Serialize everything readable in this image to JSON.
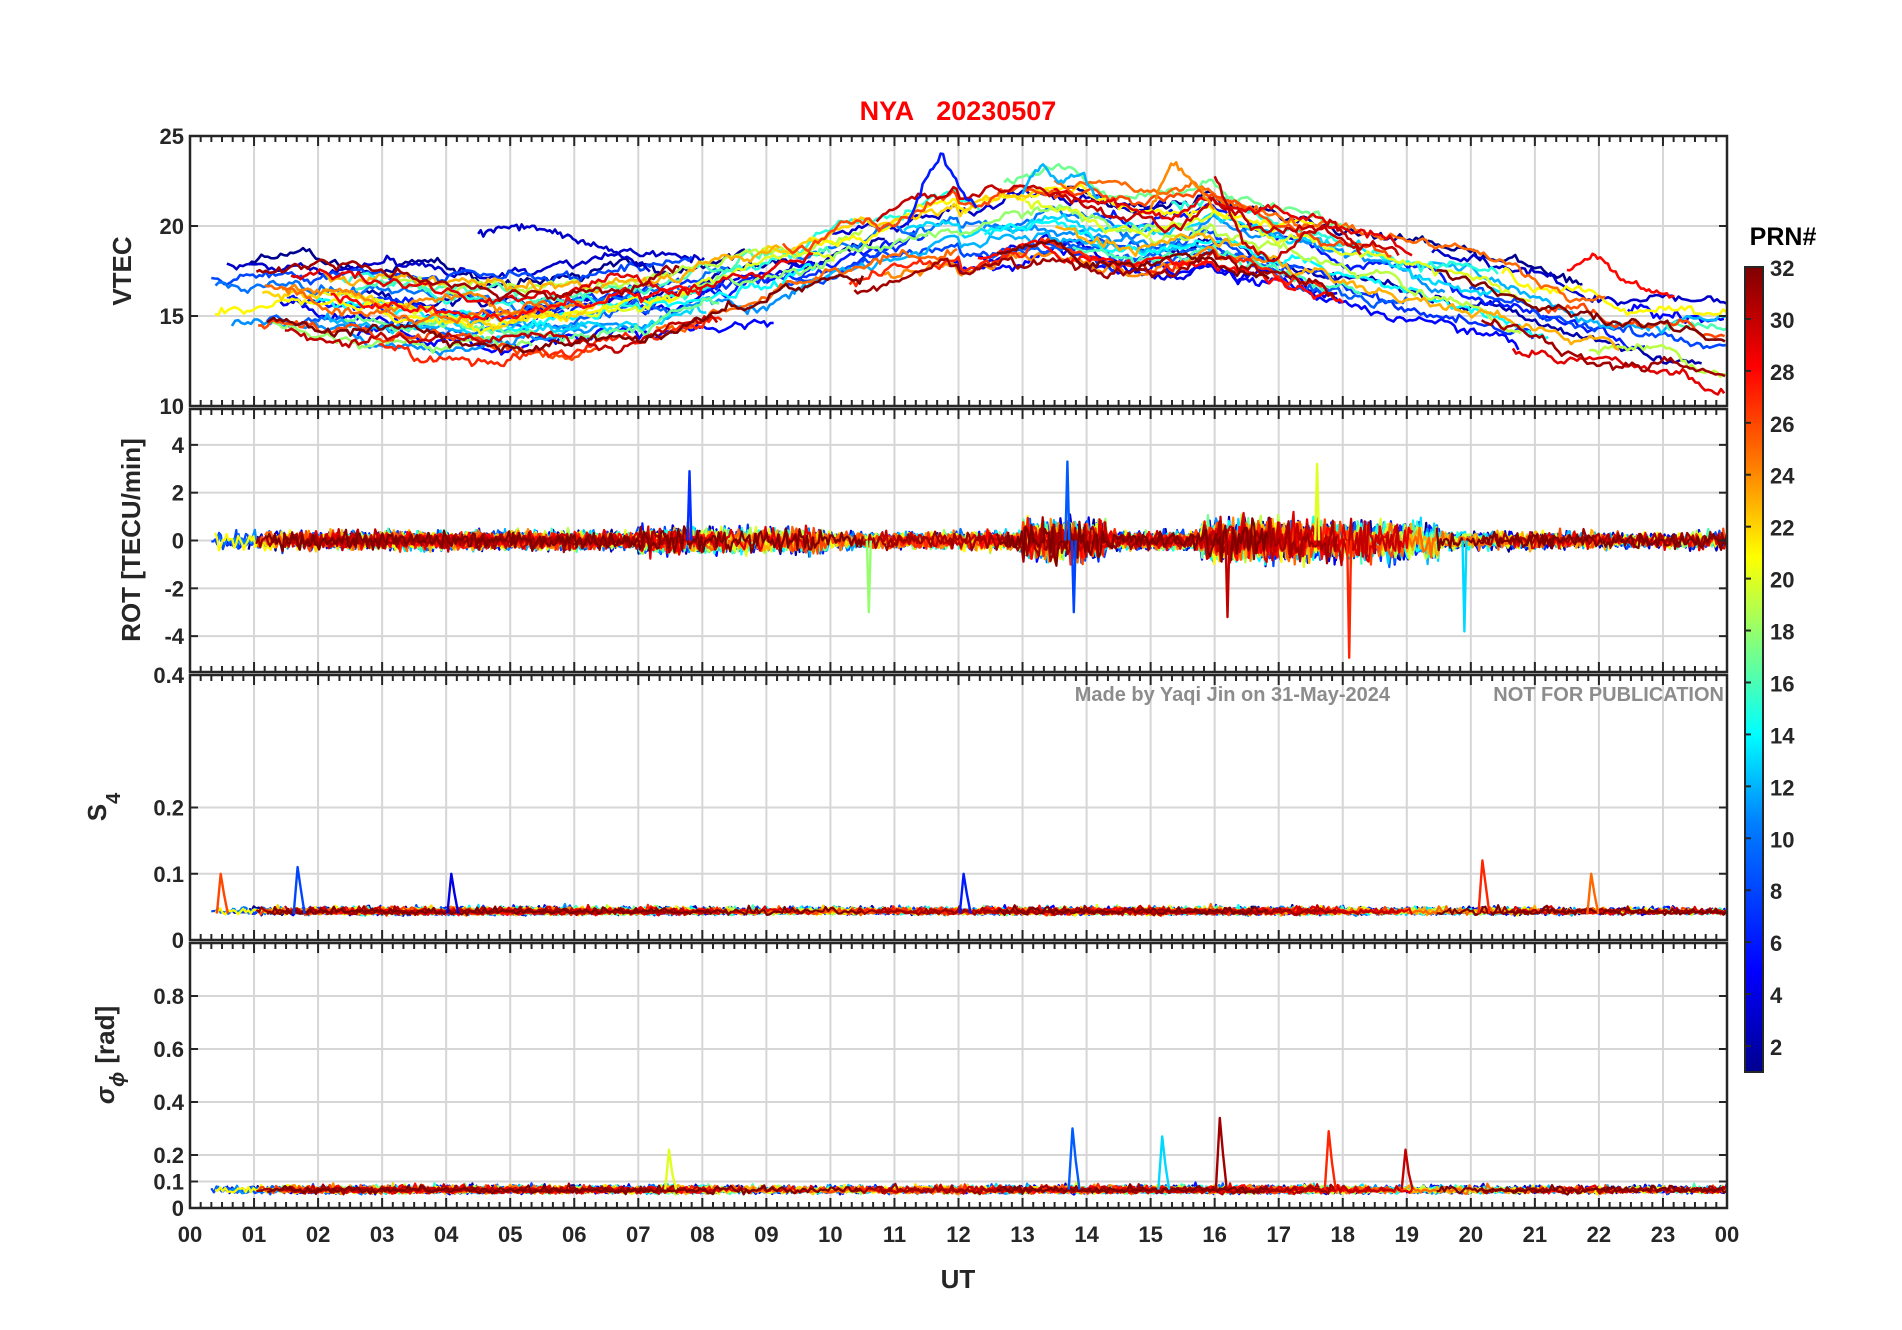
{
  "chart_data": {
    "type": "line",
    "title": {
      "station": "NYA",
      "date": "20230507"
    },
    "xlabel": "UT",
    "x_ticks": [
      "00",
      "01",
      "02",
      "03",
      "04",
      "05",
      "06",
      "07",
      "08",
      "09",
      "10",
      "11",
      "12",
      "13",
      "14",
      "15",
      "16",
      "17",
      "18",
      "19",
      "20",
      "21",
      "22",
      "23",
      "00"
    ],
    "xlim_hours": [
      0,
      24
    ],
    "grid": true,
    "watermark": {
      "made_by": "Made by Yaqi Jin on 31-May-2024",
      "notice": "NOT FOR PUBLICATION"
    },
    "colorbar": {
      "title": "PRN#",
      "colormap": "jet",
      "range": [
        1,
        32
      ],
      "ticks": [
        "2",
        "4",
        "6",
        "8",
        "10",
        "12",
        "14",
        "16",
        "18",
        "20",
        "22",
        "24",
        "26",
        "28",
        "30",
        "32"
      ],
      "colors": [
        "#00008f",
        "#0000ff",
        "#0080ff",
        "#00ffff",
        "#80ff80",
        "#ffff00",
        "#ff8000",
        "#ff0000",
        "#800000"
      ]
    },
    "panels": [
      {
        "id": "vtec",
        "ylabel": "VTEC",
        "ylim": [
          10,
          25
        ],
        "y_ticks": [
          10,
          15,
          20,
          25
        ],
        "y_tick_labels": [
          "10",
          "15",
          "20",
          "25"
        ],
        "description_values": {
          "typical_range": [
            11,
            24
          ],
          "series": [
            {
              "prn": 3,
              "start_hour": 4.5,
              "end_hour": 7.2,
              "values": [
                19.5,
                20,
                19.8,
                19.2,
                18.5,
                17.5
              ]
            },
            {
              "prn": 6,
              "start_hour": 11.2,
              "end_hour": 12.3,
              "values": [
                20,
                22.5,
                24,
                22,
                21
              ]
            },
            {
              "prn": 12,
              "start_hour": 13,
              "end_hour": 14.2,
              "values": [
                22,
                23.5,
                22.5,
                23,
                21.5
              ]
            },
            {
              "prn": 30,
              "start_hour": 16,
              "end_hour": 18.3,
              "values": [
                22.8,
                19,
                18,
                19.5,
                20.3,
                18.5
              ]
            },
            {
              "prn": 28,
              "start_hour": 21.5,
              "end_hour": 23.2,
              "values": [
                17.5,
                18.5,
                17,
                16.5,
                16
              ]
            },
            {
              "prn": 24,
              "start_hour": 15,
              "end_hour": 16,
              "values": [
                21,
                23.5,
                22.5,
                21
              ]
            }
          ]
        }
      },
      {
        "id": "rot",
        "ylabel": "ROT [TECU/min]",
        "ylim": [
          -5.5,
          5.5
        ],
        "y_ticks": [
          -4,
          -2,
          0,
          2,
          4
        ],
        "y_tick_labels": [
          "-4",
          "-2",
          "0",
          "2",
          "4"
        ],
        "description_values": {
          "typical_band": [
            -1,
            1
          ],
          "notable_spikes": [
            {
              "hour": 13.7,
              "value": 3.3
            },
            {
              "hour": 13.8,
              "value": -3.0
            },
            {
              "hour": 16.2,
              "value": -3.2
            },
            {
              "hour": 18.1,
              "value": -4.9
            },
            {
              "hour": 17.6,
              "value": 3.2
            },
            {
              "hour": 19.9,
              "value": -3.8
            },
            {
              "hour": 10.6,
              "value": -3.0
            },
            {
              "hour": 7.8,
              "value": 2.9
            }
          ]
        }
      },
      {
        "id": "s4",
        "ylabel_main": "S",
        "ylabel_sub": "4",
        "ylim": [
          0,
          0.4
        ],
        "y_ticks": [
          0,
          0.1,
          0.2,
          0.4
        ],
        "y_tick_labels": [
          "0",
          "0.1",
          "0.2",
          "0.4"
        ],
        "description_values": {
          "baseline": 0.04,
          "notable_peaks": [
            {
              "hour": 0.5,
              "value": 0.1
            },
            {
              "hour": 1.7,
              "value": 0.11
            },
            {
              "hour": 4.1,
              "value": 0.1
            },
            {
              "hour": 12.1,
              "value": 0.1
            },
            {
              "hour": 20.2,
              "value": 0.12
            },
            {
              "hour": 21.9,
              "value": 0.1
            }
          ]
        }
      },
      {
        "id": "sigma_phi",
        "ylabel_main": "σ",
        "ylabel_sub": "ϕ",
        "ylabel_unit": "[rad]",
        "ylim": [
          0,
          1
        ],
        "y_ticks": [
          0,
          0.1,
          0.2,
          0.4,
          0.6,
          0.8
        ],
        "y_tick_labels": [
          "0",
          "0.1",
          "0.2",
          "0.4",
          "0.6",
          "0.8"
        ],
        "description_values": {
          "baseline": 0.06,
          "notable_peaks": [
            {
              "hour": 13.8,
              "value": 0.3
            },
            {
              "hour": 16.1,
              "value": 0.34
            },
            {
              "hour": 17.8,
              "value": 0.29
            },
            {
              "hour": 15.2,
              "value": 0.27
            },
            {
              "hour": 19.0,
              "value": 0.22
            },
            {
              "hour": 7.5,
              "value": 0.22
            }
          ]
        }
      }
    ]
  }
}
